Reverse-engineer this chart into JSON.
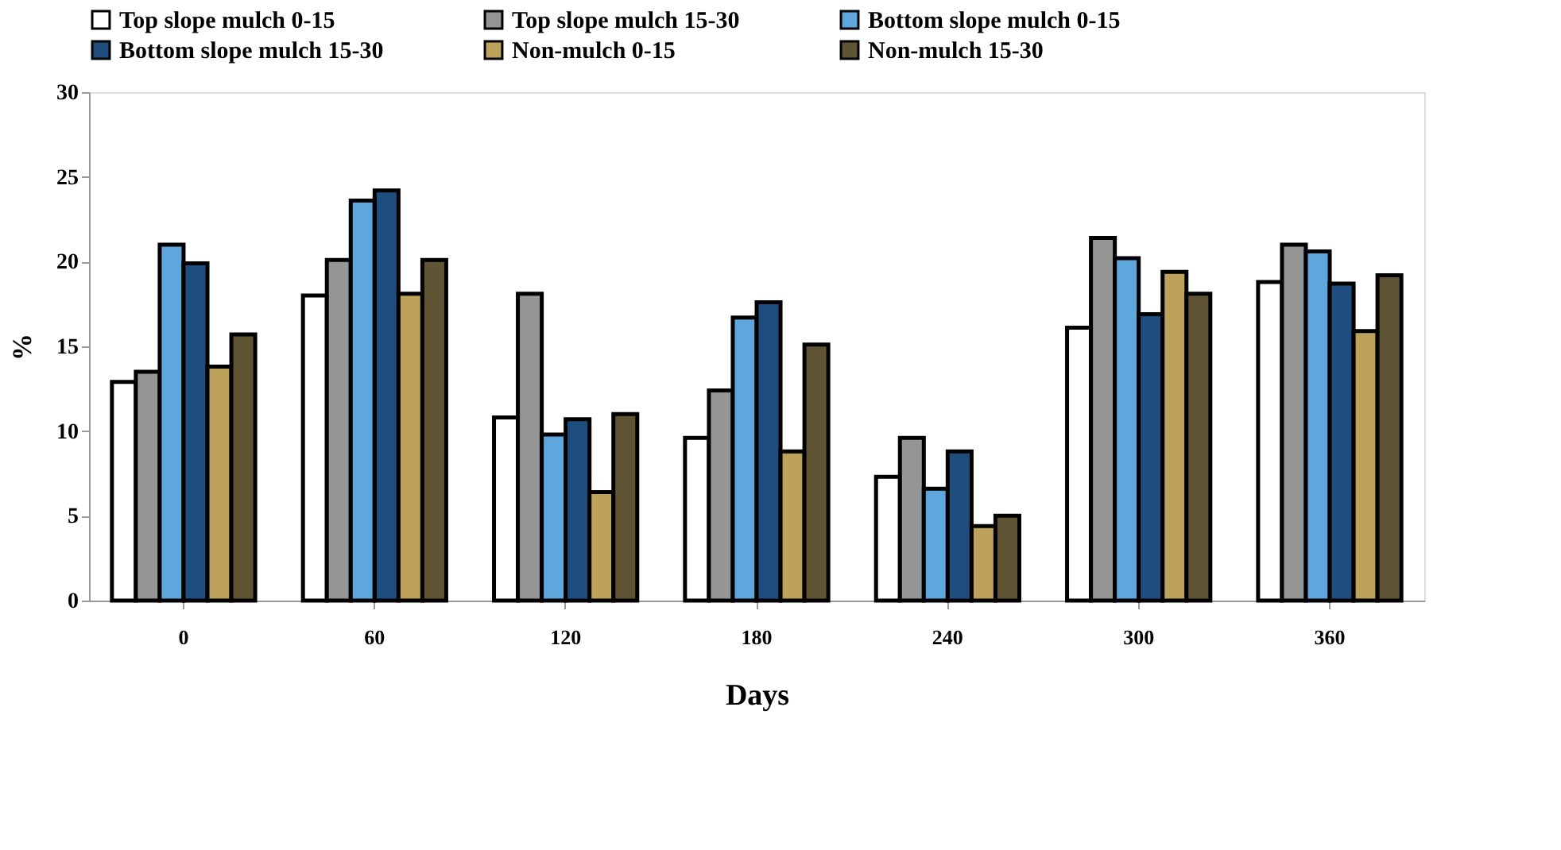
{
  "chart_data": {
    "type": "bar",
    "xlabel": "Days",
    "ylabel": "%",
    "categories": [
      "0",
      "60",
      "120",
      "180",
      "240",
      "300",
      "360"
    ],
    "series": [
      {
        "name": "Top slope mulch 0-15",
        "color": "#ffffff",
        "values": [
          12.9,
          18.0,
          10.8,
          9.6,
          7.3,
          16.1,
          18.8
        ]
      },
      {
        "name": "Top slope mulch 15-30",
        "color": "#959595",
        "values": [
          13.5,
          20.1,
          18.1,
          12.4,
          9.6,
          21.4,
          21.0
        ]
      },
      {
        "name": "Bottom slope mulch 0-15",
        "color": "#5ea6dc",
        "values": [
          21.0,
          23.6,
          9.8,
          16.7,
          6.6,
          20.2,
          20.6
        ]
      },
      {
        "name": "Bottom slope mulch 15-30",
        "color": "#1f4e7e",
        "values": [
          19.9,
          24.2,
          10.7,
          17.6,
          8.8,
          16.9,
          18.7
        ]
      },
      {
        "name": "Non-mulch  0-15",
        "color": "#bda25c",
        "values": [
          13.8,
          18.1,
          6.4,
          8.8,
          4.4,
          19.4,
          15.9
        ]
      },
      {
        "name": "Non-mulch  15-30",
        "color": "#5f5535",
        "values": [
          15.7,
          20.1,
          11.0,
          15.1,
          5.0,
          18.1,
          19.2
        ]
      }
    ],
    "ylim": [
      0,
      30
    ],
    "yticks": [
      0,
      5,
      10,
      15,
      20,
      25,
      30
    ],
    "grid": false,
    "legend": "top"
  }
}
